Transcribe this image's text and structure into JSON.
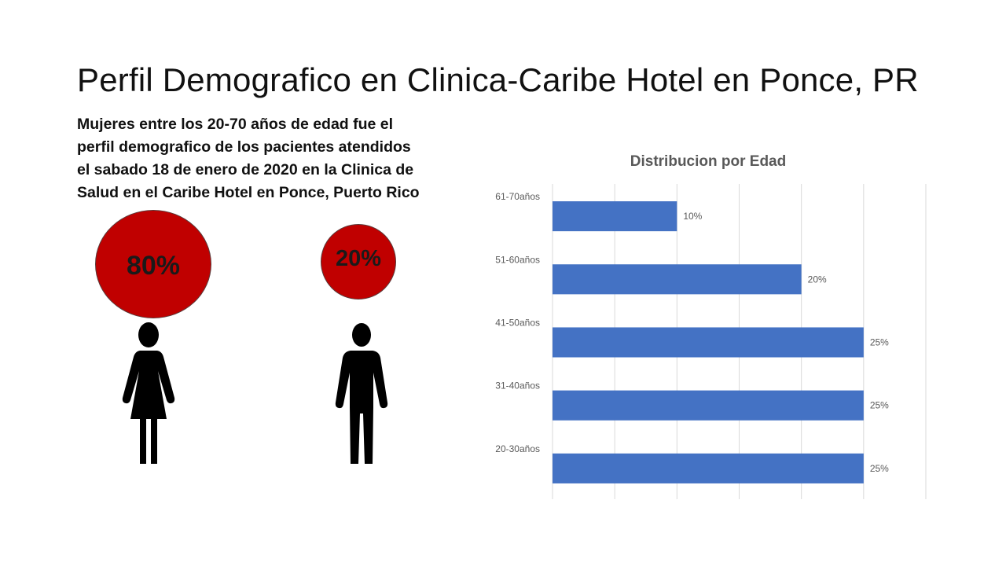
{
  "title": "Perfil Demografico en Clinica-Caribe Hotel en Ponce, PR",
  "subtitle_lines": [
    "Mujeres entre los 20-70 años de edad fue el",
    "perfil demografico de los pacientes atendidos",
    "el sabado 18 de enero de 2020 en la Clinica de",
    "Salud en el Caribe Hotel en Ponce, Puerto Rico"
  ],
  "gender": {
    "women": {
      "percent_label": "80%",
      "value": 80,
      "icon": "woman-icon"
    },
    "men": {
      "percent_label": "20%",
      "value": 20,
      "icon": "man-icon"
    },
    "circle_color": "#c00000"
  },
  "chart_data": {
    "type": "bar",
    "orientation": "horizontal",
    "title": "Distribucion por Edad",
    "categories": [
      "61-70años",
      "51-60años",
      "41-50años",
      "31-40años",
      "20-30años"
    ],
    "values": [
      10,
      20,
      25,
      25,
      25
    ],
    "data_labels": [
      "10%",
      "20%",
      "25%",
      "25%",
      "25%"
    ],
    "xlim": [
      0,
      30
    ],
    "grid": true,
    "bar_color": "#4472c4"
  }
}
